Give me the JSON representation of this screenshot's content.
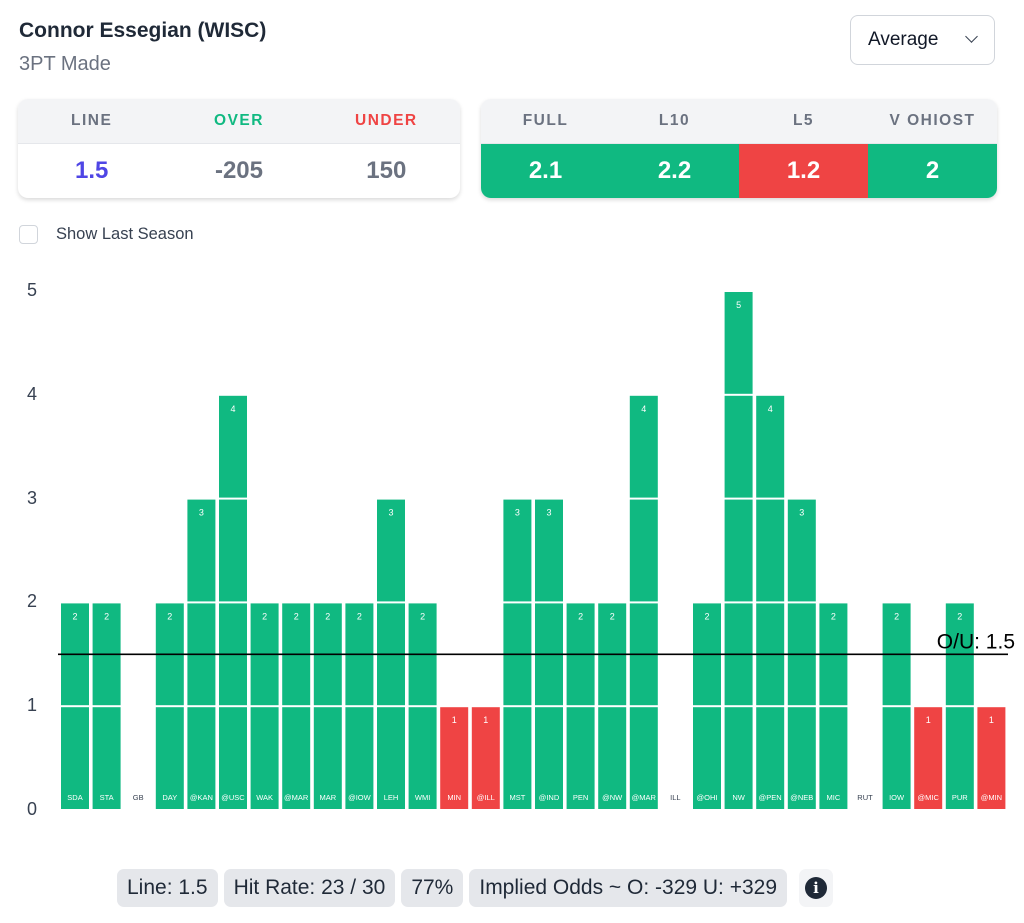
{
  "header": {
    "player": "Connor Essegian (WISC)",
    "stat": "3PT Made",
    "dropdown_value": "Average"
  },
  "odds_card": {
    "headers": [
      "LINE",
      "OVER",
      "UNDER"
    ],
    "values": [
      "1.5",
      "-205",
      "150"
    ]
  },
  "averages_card": {
    "headers": [
      "FULL",
      "L10",
      "L5",
      "V OHIOST"
    ],
    "values": [
      "2.1",
      "2.2",
      "1.2",
      "2"
    ]
  },
  "controls": {
    "show_last_season_label": "Show Last Season",
    "show_last_season_checked": false
  },
  "colors": {
    "over": "#10b981",
    "under": "#ef4444",
    "line_value": "#4f46e5",
    "label_gray": "#6b7280"
  },
  "chart_data": {
    "type": "bar",
    "title": "",
    "xlabel": "",
    "ylabel": "",
    "ylim": [
      0,
      5
    ],
    "yticks": [
      "0",
      "1",
      "2",
      "3",
      "4",
      "5"
    ],
    "line": 1.5,
    "line_label": "O/U: 1.5",
    "categories": [
      "SDA",
      "STA",
      "GB",
      "DAY",
      "@KAN",
      "@USC",
      "WAK",
      "@MAR",
      "MAR",
      "@IOW",
      "LEH",
      "WMI",
      "MIN",
      "@ILL",
      "MST",
      "@IND",
      "PEN",
      "@NW",
      "@MAR",
      "ILL",
      "@OHI",
      "NW",
      "@PEN",
      "@NEB",
      "MIC",
      "RUT",
      "IOW",
      "@MIC",
      "PUR",
      "@MIN"
    ],
    "values": [
      2,
      2,
      0,
      2,
      3,
      4,
      2,
      2,
      2,
      2,
      3,
      2,
      1,
      1,
      3,
      3,
      2,
      2,
      4,
      0,
      2,
      5,
      4,
      3,
      2,
      0,
      2,
      1,
      2,
      1
    ]
  },
  "footer": {
    "line": "Line: 1.5",
    "hit_rate": "Hit Rate: 23 / 30",
    "percent": "77%",
    "implied_odds": "Implied Odds ~ O: -329 U: +329",
    "info_icon": "info-icon"
  }
}
